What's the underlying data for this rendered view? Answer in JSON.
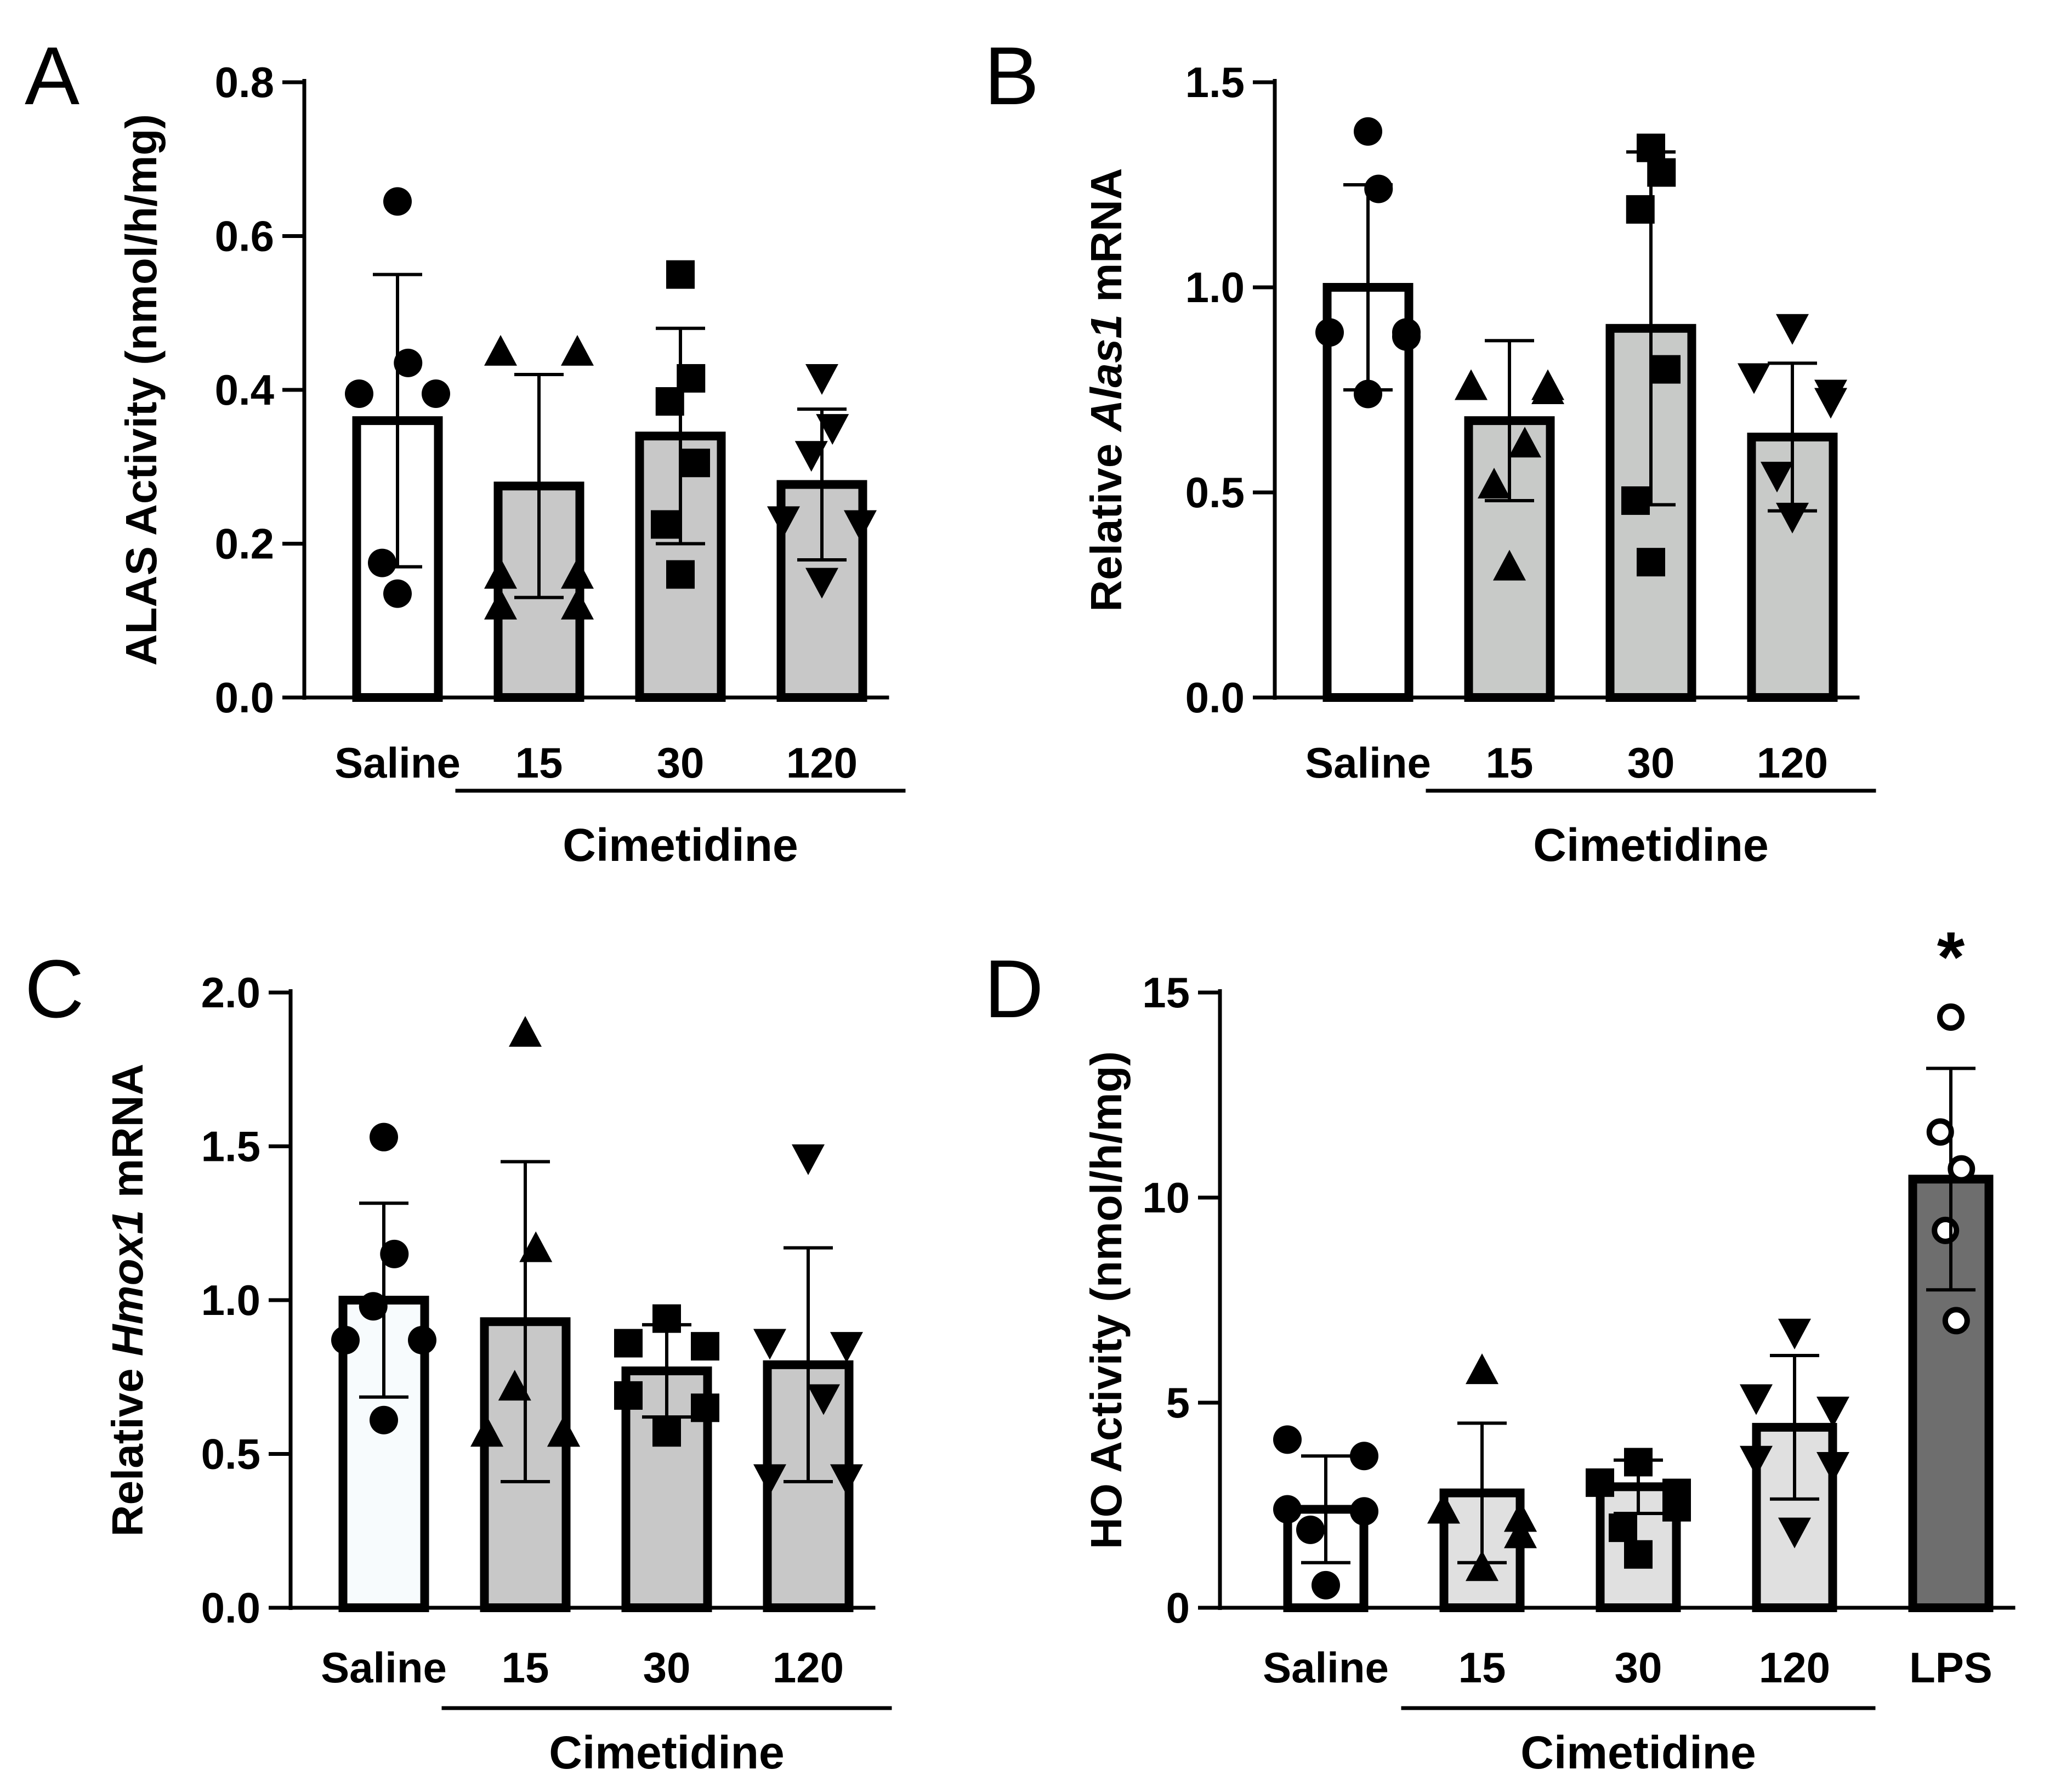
{
  "chart_data": [
    {
      "panel": "A",
      "type": "bar",
      "ylabel": "ALAS Activity (nmol/h/mg)",
      "ylabel_parts": [
        {
          "t": "ALAS Activity (nmol/h/mg)",
          "i": false
        }
      ],
      "ylim": [
        0,
        0.8
      ],
      "yticks": [
        0.0,
        0.2,
        0.4,
        0.6,
        0.8
      ],
      "ytick_labels": [
        "0.0",
        "0.2",
        "0.4",
        "0.6",
        "0.8"
      ],
      "categories": [
        "Saline",
        "15",
        "30",
        "120"
      ],
      "group_label": "Cimetidine",
      "group_span": [
        1,
        3
      ],
      "means": [
        0.36,
        0.275,
        0.34,
        0.277
      ],
      "sd": [
        0.19,
        0.145,
        0.14,
        0.098
      ],
      "bar_colors": [
        "#ffffff",
        "#c8c8c8",
        "#c8c8c8",
        "#c8c8c8"
      ],
      "markers": [
        "circle",
        "triangle-up",
        "square",
        "triangle-down"
      ],
      "marker_fill": [
        "#000000",
        "#000000",
        "#000000",
        "#000000"
      ],
      "points": [
        [
          0.645,
          0.435,
          0.395,
          0.395,
          0.175,
          0.135
        ],
        [
          0.45,
          0.45,
          0.16,
          0.16,
          0.12,
          0.12
        ],
        [
          0.55,
          0.415,
          0.385,
          0.305,
          0.225,
          0.16
        ],
        [
          0.415,
          0.35,
          0.315,
          0.23,
          0.225,
          0.15
        ]
      ],
      "significance": [
        "",
        "",
        "",
        ""
      ]
    },
    {
      "panel": "B",
      "type": "bar",
      "ylabel": "Relative Alas1 mRNA",
      "ylabel_parts": [
        {
          "t": "Relative ",
          "i": false
        },
        {
          "t": "Alas1",
          "i": true
        },
        {
          "t": " mRNA",
          "i": false
        }
      ],
      "ylim": [
        0,
        1.5
      ],
      "yticks": [
        0.0,
        0.5,
        1.0,
        1.5
      ],
      "ytick_labels": [
        "0.0",
        "0.5",
        "1.0",
        "1.5"
      ],
      "categories": [
        "Saline",
        "15",
        "30",
        "120"
      ],
      "group_label": "Cimetidine",
      "group_span": [
        1,
        3
      ],
      "means": [
        1.0,
        0.675,
        0.9,
        0.635
      ],
      "sd": [
        0.25,
        0.195,
        0.43,
        0.18
      ],
      "bar_colors": [
        "#ffffff",
        "#c8cac8",
        "#c8cac8",
        "#c8cac8"
      ],
      "markers": [
        "circle",
        "triangle-up",
        "square",
        "triangle-down"
      ],
      "marker_fill": [
        "#000000",
        "#000000",
        "#000000",
        "#000000"
      ],
      "points": [
        [
          1.38,
          1.24,
          0.89,
          0.89,
          0.88,
          0.74
        ],
        [
          0.76,
          0.76,
          0.75,
          0.62,
          0.52,
          0.32
        ],
        [
          1.34,
          1.28,
          1.19,
          0.8,
          0.48,
          0.33
        ],
        [
          0.9,
          0.78,
          0.74,
          0.72,
          0.54,
          0.44
        ]
      ],
      "significance": [
        "",
        "",
        "",
        ""
      ]
    },
    {
      "panel": "C",
      "type": "bar",
      "ylabel": "Relative Hmox1 mRNA",
      "ylabel_parts": [
        {
          "t": "Relative ",
          "i": false
        },
        {
          "t": "Hmox1",
          "i": true
        },
        {
          "t": " mRNA",
          "i": false
        }
      ],
      "ylim": [
        0,
        2.0
      ],
      "yticks": [
        0.0,
        0.5,
        1.0,
        1.5,
        2.0
      ],
      "ytick_labels": [
        "0.0",
        "0.5",
        "1.0",
        "1.5",
        "2.0"
      ],
      "categories": [
        "Saline",
        "15",
        "30",
        "120"
      ],
      "group_label": "Cimetidine",
      "group_span": [
        1,
        3
      ],
      "means": [
        1.0,
        0.93,
        0.77,
        0.79
      ],
      "sd": [
        0.315,
        0.52,
        0.15,
        0.38
      ],
      "bar_colors": [
        "#f7fbfd",
        "#c8c8c8",
        "#c8c8c8",
        "#c8c8c8"
      ],
      "markers": [
        "circle",
        "triangle-up",
        "square",
        "triangle-down"
      ],
      "marker_fill": [
        "#000000",
        "#000000",
        "#000000",
        "#000000"
      ],
      "points": [
        [
          1.53,
          1.15,
          0.98,
          0.87,
          0.87,
          0.61
        ],
        [
          1.87,
          1.17,
          0.72,
          0.57,
          0.57,
          0.57
        ],
        [
          0.94,
          0.86,
          0.85,
          0.69,
          0.65,
          0.57
        ],
        [
          1.46,
          0.86,
          0.85,
          0.68,
          0.42,
          0.42
        ]
      ],
      "significance": [
        "",
        "",
        "",
        ""
      ]
    },
    {
      "panel": "D",
      "type": "bar",
      "ylabel": "HO Activity (nmol/h/mg)",
      "ylabel_parts": [
        {
          "t": "HO Activity (nmol/h/mg)",
          "i": false
        }
      ],
      "ylim": [
        0,
        15
      ],
      "yticks": [
        0,
        5,
        10,
        15
      ],
      "ytick_labels": [
        "0",
        "5",
        "10",
        "15"
      ],
      "categories": [
        "Saline",
        "15",
        "30",
        "120",
        "LPS"
      ],
      "group_label": "Cimetidine",
      "group_span": [
        1,
        3
      ],
      "means": [
        2.4,
        2.8,
        2.95,
        4.4,
        10.45
      ],
      "sd": [
        1.3,
        1.7,
        0.65,
        1.75,
        2.7
      ],
      "bar_colors": [
        "#ffffff",
        "#e0e0e0",
        "#e0e0e0",
        "#e0e0e0",
        "#6e6e6e"
      ],
      "markers": [
        "circle",
        "triangle-up",
        "square",
        "triangle-down",
        "circle-open"
      ],
      "marker_fill": [
        "#000000",
        "#000000",
        "#000000",
        "#000000",
        "#ffffff"
      ],
      "points": [
        [
          4.1,
          3.7,
          2.4,
          2.35,
          1.9,
          0.55
        ],
        [
          5.8,
          2.4,
          2.2,
          2.2,
          1.8,
          1.0
        ],
        [
          3.55,
          3.05,
          2.8,
          2.45,
          1.95,
          1.3
        ],
        [
          6.7,
          5.1,
          4.8,
          3.6,
          3.45,
          1.85
        ],
        [
          14.4,
          11.6,
          10.7,
          9.2,
          7.0
        ]
      ],
      "significance": [
        "",
        "",
        "",
        "",
        "*"
      ]
    }
  ]
}
